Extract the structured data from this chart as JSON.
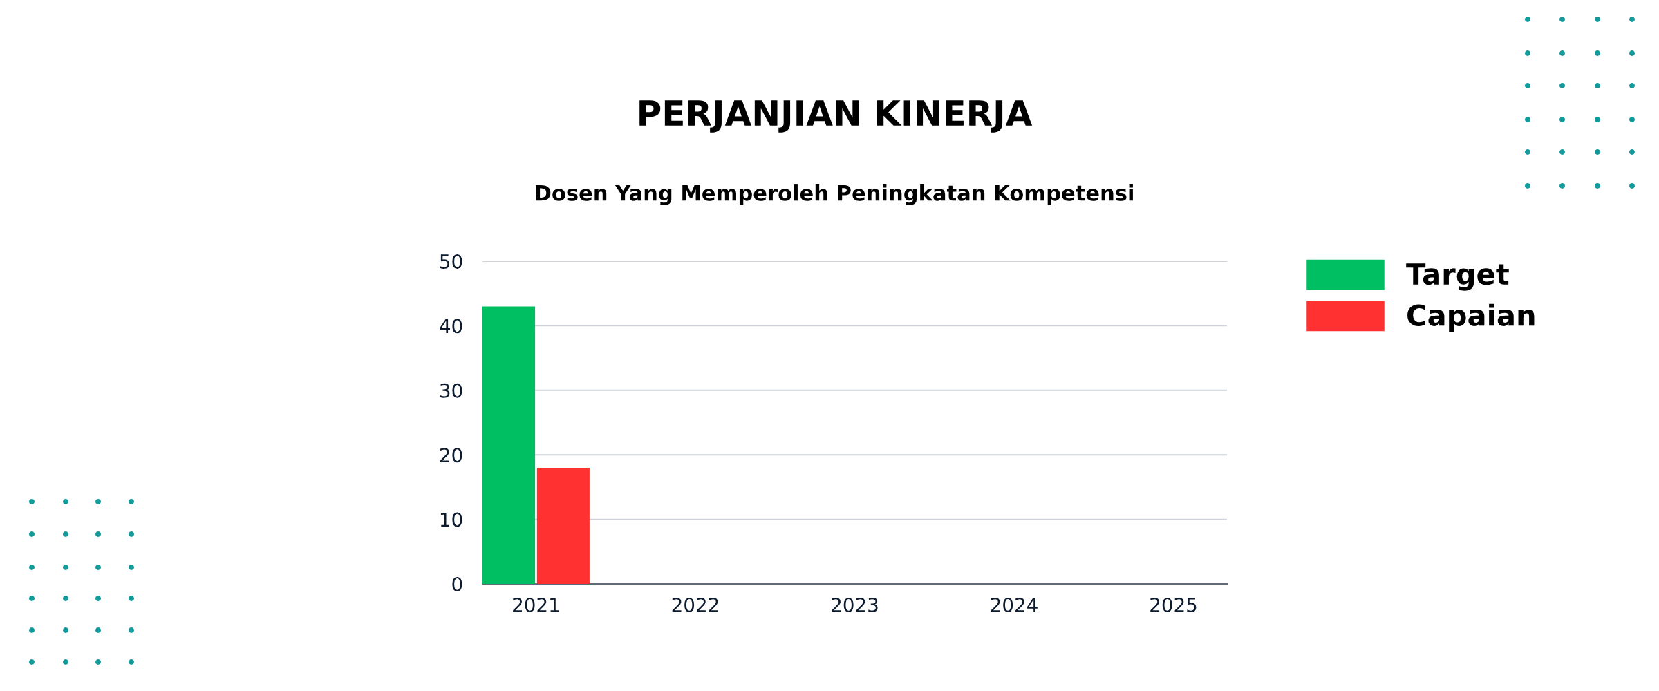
{
  "chart_data": {
    "type": "bar",
    "title": "PERJANJIAN KINERJA",
    "subtitle": "Dosen Yang Memperoleh Peningkatan Kompetensi",
    "categories": [
      "2021",
      "2022",
      "2023",
      "2024",
      "2025"
    ],
    "series": [
      {
        "name": "Target",
        "color": "#00bf63",
        "values": [
          43,
          null,
          null,
          null,
          null
        ]
      },
      {
        "name": "Capaian",
        "color": "#ff3131",
        "values": [
          18,
          null,
          null,
          null,
          null
        ]
      }
    ],
    "ylim": [
      0,
      50
    ],
    "yticks": [
      0,
      10,
      20,
      30,
      40,
      50
    ],
    "grid": "y",
    "legend": "top right"
  }
}
